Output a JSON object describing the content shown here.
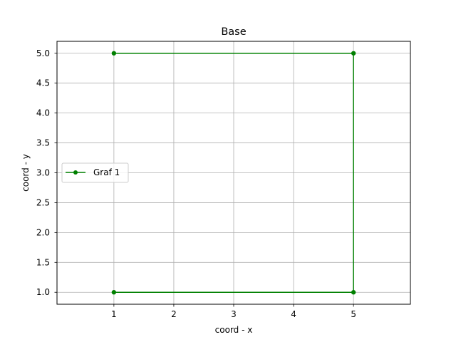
{
  "chart_data": {
    "type": "line",
    "title": "Base",
    "xlabel": "coord - x",
    "ylabel": "coord - y",
    "xlim": [
      0.05,
      5.95
    ],
    "ylim": [
      0.8,
      5.2
    ],
    "xticks": [
      1,
      2,
      3,
      4,
      5
    ],
    "xtick_labels": [
      "1",
      "2",
      "3",
      "4",
      "5"
    ],
    "yticks": [
      1.0,
      1.5,
      2.0,
      2.5,
      3.0,
      3.5,
      4.0,
      4.5,
      5.0
    ],
    "ytick_labels": [
      "1.0",
      "1.5",
      "2.0",
      "2.5",
      "3.0",
      "3.5",
      "4.0",
      "4.5",
      "5.0"
    ],
    "grid": true,
    "legend_position": "center-left",
    "series": [
      {
        "name": "Graf 1",
        "color": "#008000",
        "marker": "circle",
        "x": [
          1,
          5,
          5,
          1
        ],
        "y": [
          5.0,
          5.0,
          1.0,
          1.0
        ]
      }
    ]
  }
}
